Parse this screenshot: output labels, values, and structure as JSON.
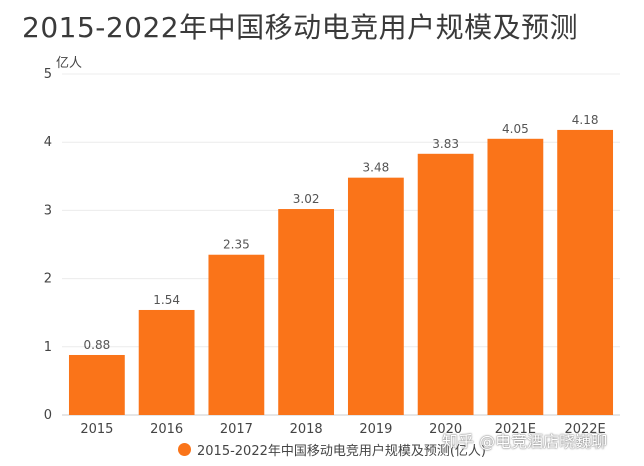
{
  "header": {
    "title": "2015-2022年中国移动电竞用户规模及预测"
  },
  "watermark": "知乎 @电竞酒店晓巍聊",
  "colors": {
    "bar": "#fa7419",
    "grid": "#ececec",
    "axis": "#cccccc"
  },
  "chart_data": {
    "type": "bar",
    "title": "2015-2022年中国移动电竞用户规模及预测",
    "ylabel": "亿人",
    "xlabel": "",
    "categories": [
      "2015",
      "2016",
      "2017",
      "2018",
      "2019",
      "2020",
      "2021E",
      "2022E"
    ],
    "series": [
      {
        "name": "2015-2022年中国移动电竞用户规模及预测(亿人)",
        "values": [
          0.88,
          1.54,
          2.35,
          3.02,
          3.48,
          3.83,
          4.05,
          4.18
        ]
      }
    ],
    "ylim": [
      0,
      5
    ],
    "yticks": [
      0,
      1,
      2,
      3,
      4,
      5
    ],
    "grid": true,
    "legend": "bottom"
  }
}
